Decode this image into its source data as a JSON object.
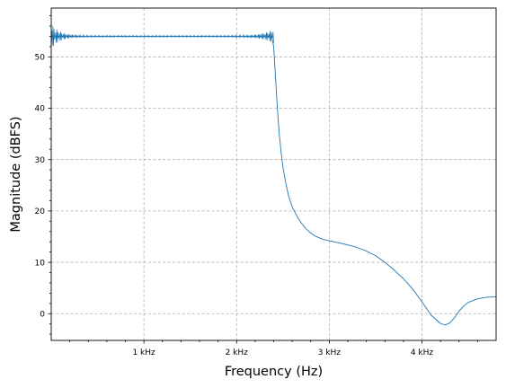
{
  "chart_data": {
    "type": "line",
    "xlabel": "Frequency (Hz)",
    "ylabel": "Magnitude (dBFS)",
    "xlim": [
      0,
      4800
    ],
    "ylim": [
      -5.2,
      59.5
    ],
    "x_ticks": [
      {
        "value": 1000,
        "label": "1 kHz"
      },
      {
        "value": 2000,
        "label": "2 kHz"
      },
      {
        "value": 3000,
        "label": "3 kHz"
      },
      {
        "value": 4000,
        "label": "4 kHz"
      }
    ],
    "x_minor_step": 200,
    "y_ticks": [
      0,
      10,
      20,
      30,
      40,
      50
    ],
    "y_minor_step": 2,
    "grid": true,
    "line_color": "#1f77b4",
    "series": [
      {
        "x": [
          0,
          60,
          150,
          300,
          600,
          1000,
          1400,
          1800,
          2100,
          2300,
          2350,
          2380,
          2400,
          2420,
          2440,
          2460,
          2480,
          2500,
          2530,
          2560,
          2600,
          2650,
          2700,
          2750,
          2800,
          2850,
          2900,
          2950,
          3000,
          3100,
          3200,
          3300,
          3400,
          3500,
          3600,
          3700,
          3800,
          3900,
          4000,
          4100,
          4200,
          4250,
          4300,
          4350,
          4400,
          4450,
          4500,
          4600,
          4700,
          4800
        ],
        "y": [
          54.0,
          54.0,
          54.0,
          54.0,
          54.0,
          54.0,
          54.0,
          54.0,
          54.0,
          54.0,
          54.0,
          54.0,
          52.0,
          46.0,
          40.0,
          35.0,
          31.5,
          28.5,
          25.5,
          23.0,
          20.8,
          19.0,
          17.6,
          16.5,
          15.7,
          15.1,
          14.7,
          14.4,
          14.2,
          13.8,
          13.4,
          12.9,
          12.2,
          11.3,
          10.0,
          8.5,
          6.8,
          4.8,
          2.3,
          -0.3,
          -1.9,
          -2.2,
          -1.8,
          -0.8,
          0.5,
          1.5,
          2.2,
          2.9,
          3.2,
          3.3
        ]
      }
    ]
  }
}
